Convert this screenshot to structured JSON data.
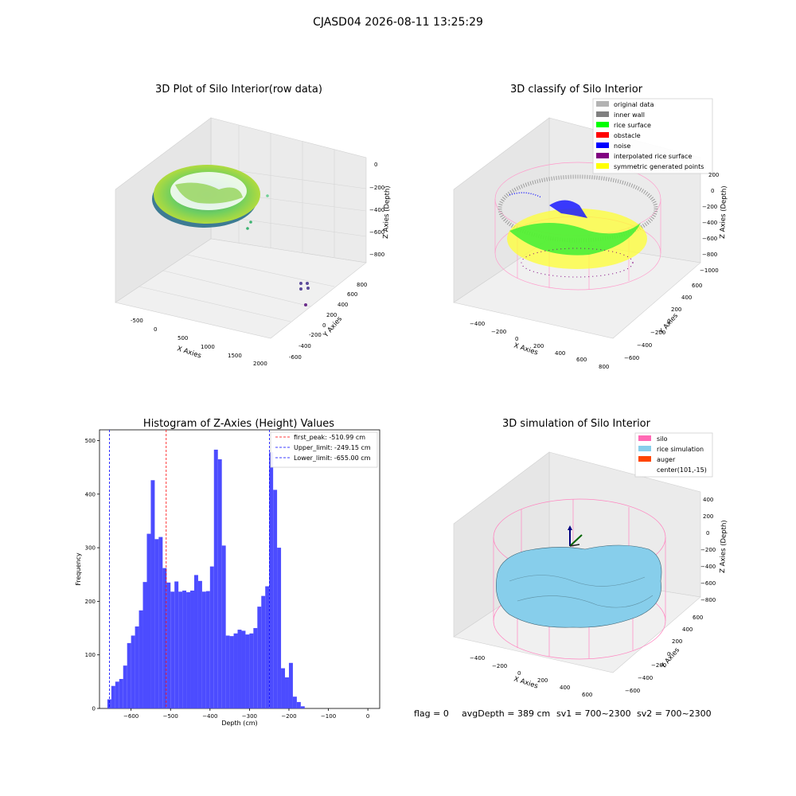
{
  "suptitle": "CJASD04 2026-08-11 13:25:29",
  "status_line": {
    "flag": "flag = 0",
    "avg_depth": "avgDepth = 389 cm",
    "sv1": "sv1 = 700~2300",
    "sv2": "sv2 = 700~2300"
  },
  "chart_data": [
    {
      "type": "scatter",
      "title": "3D Plot of Silo Interior(row data)",
      "xlabel": "X Axies",
      "ylabel": "Y Axies",
      "zlabel": "Z Axies (Depth)",
      "x_ticks": [
        "-500",
        "0",
        "500",
        "1000",
        "1500",
        "2000"
      ],
      "y_ticks": [
        "-600",
        "-400",
        "-200",
        "0",
        "200",
        "400",
        "600",
        "800"
      ],
      "z_ticks": [
        "0",
        "−200",
        "−400",
        "−600",
        "−800"
      ],
      "grid": true
    },
    {
      "type": "scatter",
      "title": "3D classify of Silo Interior",
      "xlabel": "X Axies",
      "ylabel": "Y Axies",
      "zlabel": "Z Axies (Depth)",
      "x_ticks": [
        "−400",
        "−200",
        "0",
        "200",
        "400",
        "600",
        "800"
      ],
      "y_ticks": [
        "−600",
        "−400",
        "−200",
        "0",
        "200",
        "400",
        "600"
      ],
      "z_ticks": [
        "200",
        "0",
        "−200",
        "−400",
        "−600",
        "−800",
        "−1000"
      ],
      "legend_placement": "top-right",
      "legend": [
        {
          "label": "original data",
          "color": "#b3b3b3"
        },
        {
          "label": "inner wall",
          "color": "#808080"
        },
        {
          "label": "rice surface",
          "color": "#00ff00"
        },
        {
          "label": "obstacle",
          "color": "#ff0000"
        },
        {
          "label": "noise",
          "color": "#0000ff"
        },
        {
          "label": "interpolated rice surface",
          "color": "#800080"
        },
        {
          "label": "symmetric generated points",
          "color": "#ffff00"
        }
      ],
      "grid": true
    },
    {
      "type": "bar",
      "title": "Histogram of Z-Axies (Height) Values",
      "xlabel": "Depth (cm)",
      "ylabel": "Frequency",
      "xlim": [
        -680,
        30
      ],
      "ylim": [
        0,
        520
      ],
      "x_ticks": [
        -600,
        -500,
        -400,
        -300,
        -200,
        -100,
        0
      ],
      "y_ticks": [
        0,
        100,
        200,
        300,
        400,
        500
      ],
      "bin_width": 10,
      "bin_start": -660,
      "values": [
        17,
        42,
        50,
        55,
        80,
        122,
        136,
        153,
        183,
        236,
        326,
        426,
        316,
        320,
        262,
        235,
        218,
        237,
        218,
        220,
        217,
        220,
        249,
        238,
        218,
        219,
        265,
        483,
        465,
        304,
        136,
        135,
        140,
        147,
        145,
        138,
        140,
        150,
        190,
        210,
        228,
        478,
        408,
        300,
        75,
        58,
        85,
        22,
        12,
        4
      ],
      "bar_color": "#4c4cff",
      "vlines": [
        {
          "label": "first_peak: -510.99 cm",
          "x": -510.99,
          "color": "#ff0000"
        },
        {
          "label": "Upper_limit: -249.15 cm",
          "x": -249.15,
          "color": "#0000ff"
        },
        {
          "label": "Lower_limit: -655.00 cm",
          "x": -655.0,
          "color": "#0000ff"
        }
      ],
      "legend_placement": "top-right"
    },
    {
      "type": "scatter",
      "title": "3D simulation of Silo Interior",
      "xlabel": "X Axies",
      "ylabel": "Y Axies",
      "zlabel": "Z Axies (Depth)",
      "x_ticks": [
        "−400",
        "−200",
        "0",
        "200",
        "400",
        "600"
      ],
      "y_ticks": [
        "−600",
        "−400",
        "−200",
        "0",
        "200",
        "400",
        "600"
      ],
      "z_ticks": [
        "400",
        "200",
        "0",
        "−200",
        "−400",
        "−600",
        "−800"
      ],
      "legend_placement": "top-right",
      "legend": [
        {
          "label": "silo",
          "color": "#ff69b4"
        },
        {
          "label": "rice simulation",
          "color": "#87ceeb"
        },
        {
          "label": "auger",
          "color": "#ff4500"
        },
        {
          "label": "center(101,-15)",
          "color": ""
        }
      ],
      "grid": true
    }
  ]
}
